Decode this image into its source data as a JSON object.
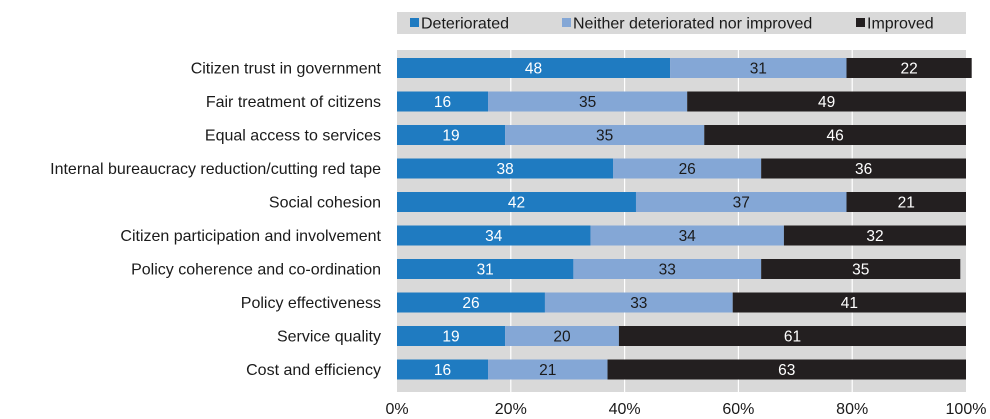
{
  "chart_data": {
    "type": "bar",
    "orientation": "horizontal",
    "stacked": true,
    "categories": [
      "Citizen trust in government",
      "Fair treatment of citizens",
      "Equal access to services",
      "Internal bureaucracy reduction/cutting red tape",
      "Social cohesion",
      "Citizen participation and involvement",
      "Policy coherence and co-ordination",
      "Policy effectiveness",
      "Service quality",
      "Cost and efficiency"
    ],
    "series": [
      {
        "name": "Deteriorated",
        "color": "#1f7bc1",
        "label_color": "#ffffff",
        "values": [
          48,
          16,
          19,
          38,
          42,
          34,
          31,
          26,
          19,
          16
        ]
      },
      {
        "name": "Neither deteriorated nor improved",
        "color": "#84a7d6",
        "label_color": "#1a1a1a",
        "values": [
          31,
          35,
          35,
          26,
          37,
          34,
          33,
          33,
          20,
          21
        ]
      },
      {
        "name": "Improved",
        "color": "#231f20",
        "label_color": "#ffffff",
        "values": [
          22,
          49,
          46,
          36,
          21,
          32,
          35,
          41,
          61,
          63
        ]
      }
    ],
    "xlim": [
      0,
      100
    ],
    "x_ticks": [
      "0%",
      "20%",
      "40%",
      "60%",
      "80%",
      "100%"
    ],
    "x_tick_values": [
      0,
      20,
      40,
      60,
      80,
      100
    ],
    "legend_position": "top",
    "grid": true,
    "background_color": "#d9d9d9"
  }
}
